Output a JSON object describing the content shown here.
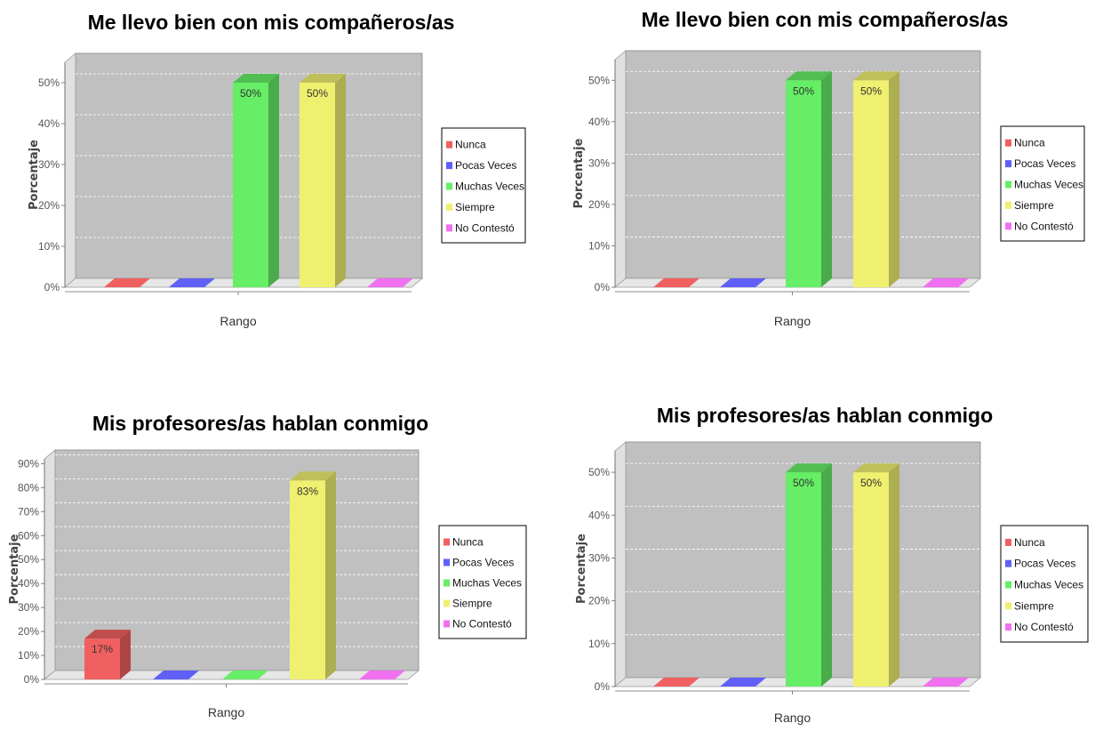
{
  "chart_data": [
    {
      "type": "bar",
      "title": "Me llevo bien con mis compañeros/as",
      "xlabel": "Rango",
      "ylabel": "Porcentaje",
      "ylim": [
        0,
        55
      ],
      "yticks": [
        0,
        10,
        20,
        30,
        40,
        50
      ],
      "tick_labels": [
        "0%",
        "10%",
        "20%",
        "30%",
        "40%",
        "50%"
      ],
      "grid": true,
      "legend_position": "right",
      "categories": [
        "Nunca",
        "Pocas Veces",
        "Muchas Veces",
        "Siempre",
        "No Contestó"
      ],
      "values": [
        0,
        0,
        50,
        50,
        0
      ],
      "value_labels": [
        "",
        "",
        "50%",
        "50%",
        ""
      ]
    },
    {
      "type": "bar",
      "title": "Me llevo bien con mis compañeros/as",
      "xlabel": "Rango",
      "ylabel": "Porcentaje",
      "ylim": [
        0,
        55
      ],
      "yticks": [
        0,
        10,
        20,
        30,
        40,
        50
      ],
      "tick_labels": [
        "0%",
        "10%",
        "20%",
        "30%",
        "40%",
        "50%"
      ],
      "grid": true,
      "legend_position": "right",
      "categories": [
        "Nunca",
        "Pocas Veces",
        "Muchas Veces",
        "Siempre",
        "No Contestó"
      ],
      "values": [
        0,
        0,
        50,
        50,
        0
      ],
      "value_labels": [
        "",
        "",
        "50%",
        "50%",
        ""
      ]
    },
    {
      "type": "bar",
      "title": "Mis profesores/as hablan conmigo",
      "xlabel": "Rango",
      "ylabel": "Porcentaje",
      "ylim": [
        0,
        92
      ],
      "yticks": [
        0,
        10,
        20,
        30,
        40,
        50,
        60,
        70,
        80,
        90
      ],
      "tick_labels": [
        "0%",
        "10%",
        "20%",
        "30%",
        "40%",
        "50%",
        "60%",
        "70%",
        "80%",
        "90%"
      ],
      "grid": true,
      "legend_position": "right",
      "categories": [
        "Nunca",
        "Pocas Veces",
        "Muchas Veces",
        "Siempre",
        "No Contestó"
      ],
      "values": [
        17,
        0,
        0,
        83,
        0
      ],
      "value_labels": [
        "17%",
        "",
        "",
        "83%",
        ""
      ]
    },
    {
      "type": "bar",
      "title": "Mis profesores/as hablan conmigo",
      "xlabel": "Rango",
      "ylabel": "Porcentaje",
      "ylim": [
        0,
        55
      ],
      "yticks": [
        0,
        10,
        20,
        30,
        40,
        50
      ],
      "tick_labels": [
        "0%",
        "10%",
        "20%",
        "30%",
        "40%",
        "50%"
      ],
      "grid": true,
      "legend_position": "right",
      "categories": [
        "Nunca",
        "Pocas Veces",
        "Muchas Veces",
        "Siempre",
        "No Contestó"
      ],
      "values": [
        0,
        0,
        50,
        50,
        0
      ],
      "value_labels": [
        "",
        "",
        "50%",
        "50%",
        ""
      ]
    }
  ],
  "series_colors": [
    "#f06060",
    "#6060f8",
    "#66ee66",
    "#f0f070",
    "#f070f0"
  ]
}
